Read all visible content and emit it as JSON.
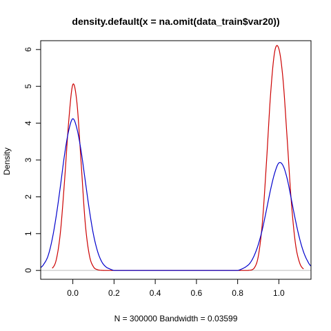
{
  "chart_data": {
    "type": "line",
    "title": "density.default(x = na.omit(data_train$var20))",
    "xlabel": "N = 300000   Bandwidth = 0.03599",
    "ylabel": "Density",
    "xlim": [
      -0.156,
      1.156
    ],
    "ylim": [
      -0.24,
      6.24
    ],
    "x_ticks": [
      0.0,
      0.2,
      0.4,
      0.6,
      0.8,
      1.0
    ],
    "x_tick_labels": [
      "0.0",
      "0.2",
      "0.4",
      "0.6",
      "0.8",
      "1.0"
    ],
    "y_ticks": [
      0,
      1,
      2,
      3,
      4,
      5,
      6
    ],
    "y_tick_labels": [
      "0",
      "1",
      "2",
      "3",
      "4",
      "5",
      "6"
    ],
    "baseline": 0,
    "grid": false,
    "series": [
      {
        "color": "#cc0000",
        "x": [
          -0.1,
          -0.08,
          -0.06,
          -0.04,
          -0.02,
          0.0,
          0.02,
          0.04,
          0.06,
          0.08,
          0.1,
          0.12,
          0.15,
          0.85,
          0.88,
          0.9,
          0.92,
          0.94,
          0.96,
          0.98,
          1.0,
          1.02,
          1.04,
          1.06,
          1.08,
          1.1,
          1.12
        ],
        "values": [
          0.06,
          0.3,
          1.05,
          2.45,
          4.05,
          5.05,
          4.55,
          2.95,
          1.3,
          0.42,
          0.1,
          0.02,
          0.0,
          0.0,
          0.06,
          0.38,
          1.3,
          2.95,
          4.8,
          5.95,
          6.02,
          5.2,
          3.6,
          1.9,
          0.75,
          0.22,
          0.04
        ]
      },
      {
        "color": "#0000cc",
        "x": [
          -0.156,
          -0.14,
          -0.12,
          -0.1,
          -0.08,
          -0.06,
          -0.04,
          -0.02,
          0.0,
          0.02,
          0.04,
          0.06,
          0.08,
          0.1,
          0.12,
          0.14,
          0.16,
          0.18,
          0.2,
          0.8,
          0.82,
          0.84,
          0.86,
          0.88,
          0.9,
          0.92,
          0.94,
          0.96,
          0.98,
          1.0,
          1.02,
          1.04,
          1.06,
          1.08,
          1.1,
          1.12,
          1.14,
          1.156
        ],
        "values": [
          0.08,
          0.18,
          0.4,
          0.85,
          1.5,
          2.3,
          3.15,
          3.8,
          4.12,
          3.85,
          3.25,
          2.45,
          1.65,
          0.98,
          0.52,
          0.24,
          0.1,
          0.04,
          0.0,
          0.0,
          0.04,
          0.1,
          0.2,
          0.4,
          0.7,
          1.12,
          1.65,
          2.2,
          2.65,
          2.92,
          2.85,
          2.5,
          1.95,
          1.38,
          0.88,
          0.5,
          0.25,
          0.12
        ]
      }
    ]
  }
}
